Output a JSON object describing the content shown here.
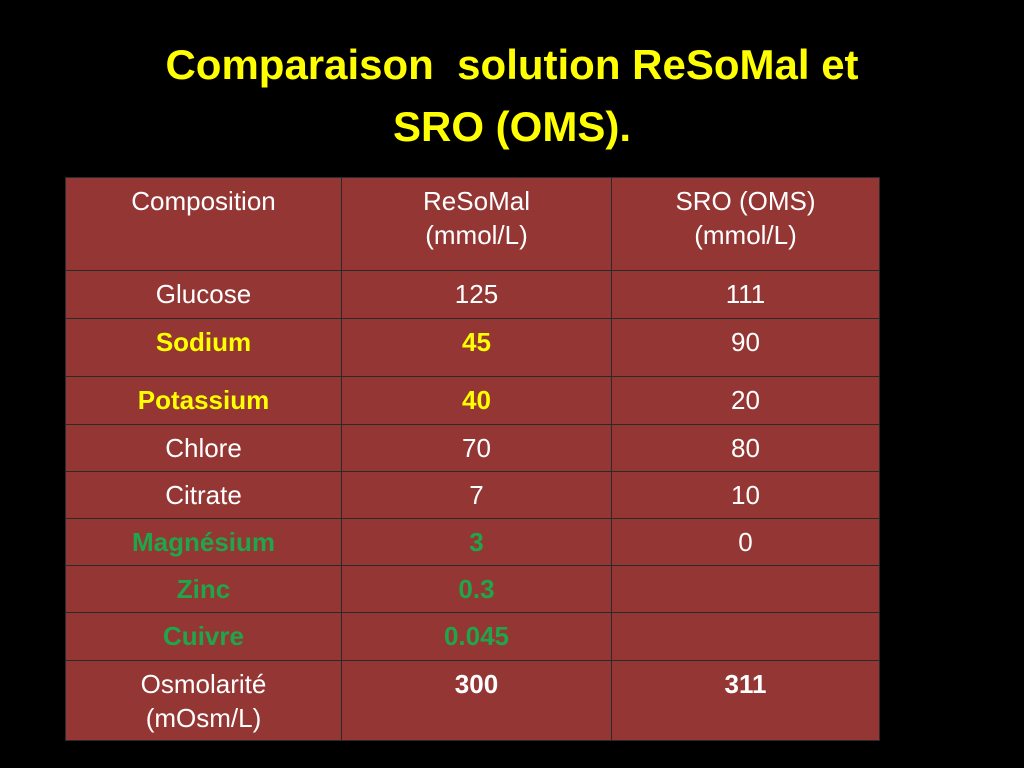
{
  "title": {
    "lines": [
      "Comparaison  solution ReSoMal et",
      "SRO (OMS)."
    ]
  },
  "table": {
    "header": [
      [
        "Composition"
      ],
      [
        "ReSoMal",
        "(mmol/L)"
      ],
      [
        "SRO (OMS)",
        "(mmol/L)"
      ]
    ],
    "rows": [
      [
        "Glucose",
        125,
        111
      ],
      [
        "Sodium",
        45,
        90
      ],
      [
        "Potassium",
        40,
        20
      ],
      [
        "Chlore",
        70,
        80
      ],
      [
        "Citrate",
        7,
        10
      ],
      [
        "Magnésium",
        3,
        0
      ],
      [
        "Zinc",
        0.3,
        null
      ],
      [
        "Cuivre",
        0.045,
        null
      ],
      [
        [
          "Osmolarité",
          "(mOsm/L)"
        ],
        300,
        311
      ]
    ]
  }
}
